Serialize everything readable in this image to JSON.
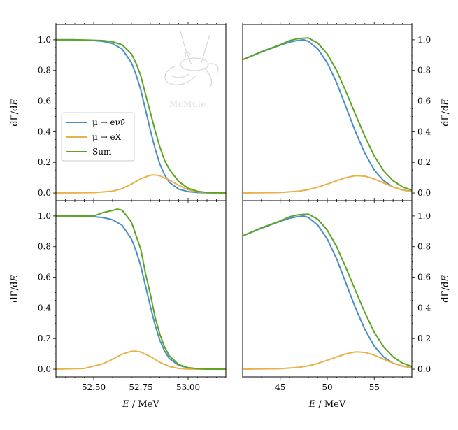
{
  "figure": {
    "watermark_text": "McMule",
    "colors": {
      "muon": "#4a8ec6",
      "alp": "#e8b24a",
      "sum": "#5ea424",
      "axis": "#000000"
    }
  },
  "chart_data": [
    {
      "type": "line",
      "panel": "top-left",
      "xlim": [
        52.3,
        53.2
      ],
      "ylim": [
        -0.05,
        1.1
      ],
      "x_ticks": [
        52.5,
        52.75,
        53.0
      ],
      "x_tick_labels": [],
      "y_ticks": [
        0.0,
        0.2,
        0.4,
        0.6,
        0.8,
        1.0
      ],
      "y_tick_labels": [
        "0.0",
        "0.2",
        "0.4",
        "0.6",
        "0.8",
        "1.0"
      ],
      "y_axis_side": "left",
      "xlabel": "",
      "ylabel": "dΓ/dE",
      "legend": {
        "position": "left-center",
        "entries": [
          "μ → eνν̄",
          "μ → eX",
          "Sum"
        ]
      },
      "series": [
        {
          "name": "μ → eνν̄",
          "color": "#4a8ec6",
          "x": [
            52.3,
            52.4,
            52.5,
            52.55,
            52.6,
            52.65,
            52.7,
            52.725,
            52.75,
            52.775,
            52.8,
            52.825,
            52.85,
            52.875,
            52.9,
            52.95,
            53.0,
            53.05,
            53.1,
            53.2
          ],
          "y": [
            1.0,
            1.0,
            0.995,
            0.99,
            0.975,
            0.94,
            0.85,
            0.77,
            0.67,
            0.54,
            0.41,
            0.29,
            0.19,
            0.12,
            0.07,
            0.025,
            0.009,
            0.003,
            0.001,
            0.0
          ]
        },
        {
          "name": "μ → eX",
          "color": "#e8b24a",
          "x": [
            52.3,
            52.5,
            52.6,
            52.65,
            52.7,
            52.75,
            52.8,
            52.825,
            52.85,
            52.9,
            52.95,
            53.0,
            53.05,
            53.1,
            53.2
          ],
          "y": [
            0.0,
            0.002,
            0.012,
            0.028,
            0.058,
            0.093,
            0.116,
            0.118,
            0.112,
            0.085,
            0.05,
            0.022,
            0.008,
            0.002,
            0.0
          ]
        },
        {
          "name": "Sum",
          "color": "#5ea424",
          "x": [
            52.3,
            52.4,
            52.5,
            52.55,
            52.6,
            52.65,
            52.7,
            52.725,
            52.75,
            52.775,
            52.8,
            52.825,
            52.85,
            52.875,
            52.9,
            52.95,
            53.0,
            53.05,
            53.1,
            53.2
          ],
          "y": [
            1.0,
            1.0,
            0.997,
            0.995,
            0.987,
            0.968,
            0.908,
            0.845,
            0.763,
            0.641,
            0.526,
            0.408,
            0.302,
            0.215,
            0.155,
            0.075,
            0.031,
            0.011,
            0.003,
            0.0
          ]
        }
      ]
    },
    {
      "type": "line",
      "panel": "top-right",
      "xlim": [
        41,
        59
      ],
      "ylim": [
        -0.05,
        1.1
      ],
      "x_ticks": [
        45,
        50,
        55
      ],
      "x_tick_labels": [],
      "y_ticks": [
        0.0,
        0.2,
        0.4,
        0.6,
        0.8,
        1.0
      ],
      "y_tick_labels": [
        "0.0",
        "0.2",
        "0.4",
        "0.6",
        "0.8",
        "1.0"
      ],
      "y_axis_side": "right",
      "xlabel": "",
      "ylabel": "dΓ/dE",
      "series": [
        {
          "name": "μ → eνν̄",
          "color": "#4a8ec6",
          "x": [
            41,
            43,
            45,
            46,
            47,
            47.5,
            48,
            49,
            50,
            51,
            52,
            53,
            54,
            55,
            56,
            57,
            58,
            59
          ],
          "y": [
            0.87,
            0.92,
            0.965,
            0.985,
            0.997,
            1.0,
            0.99,
            0.94,
            0.85,
            0.72,
            0.56,
            0.4,
            0.26,
            0.15,
            0.08,
            0.04,
            0.02,
            0.01
          ]
        },
        {
          "name": "μ → eX",
          "color": "#e8b24a",
          "x": [
            41,
            45,
            47,
            48,
            49,
            50,
            51,
            52,
            53,
            54,
            55,
            56,
            57,
            58,
            59
          ],
          "y": [
            0.0,
            0.003,
            0.012,
            0.022,
            0.038,
            0.058,
            0.08,
            0.1,
            0.113,
            0.11,
            0.092,
            0.065,
            0.04,
            0.02,
            0.008
          ]
        },
        {
          "name": "Sum",
          "color": "#5ea424",
          "x": [
            41,
            43,
            45,
            46,
            47,
            48,
            49,
            50,
            51,
            52,
            53,
            54,
            55,
            56,
            57,
            58,
            59
          ],
          "y": [
            0.87,
            0.923,
            0.968,
            0.995,
            1.009,
            1.012,
            0.978,
            0.908,
            0.8,
            0.66,
            0.513,
            0.37,
            0.242,
            0.145,
            0.08,
            0.04,
            0.018
          ]
        }
      ]
    },
    {
      "type": "line",
      "panel": "bottom-left",
      "xlim": [
        52.3,
        53.2
      ],
      "ylim": [
        -0.05,
        1.1
      ],
      "x_ticks": [
        52.5,
        52.75,
        53.0
      ],
      "x_tick_labels": [
        "52.50",
        "52.75",
        "53.00"
      ],
      "y_ticks": [
        0.0,
        0.2,
        0.4,
        0.6,
        0.8,
        1.0
      ],
      "y_tick_labels": [
        "0.0",
        "0.2",
        "0.4",
        "0.6",
        "0.8",
        "1.0"
      ],
      "y_axis_side": "left",
      "xlabel": "E / MeV",
      "ylabel": "dΓ/dE",
      "series": [
        {
          "name": "μ → eνν̄",
          "color": "#4a8ec6",
          "x": [
            52.3,
            52.4,
            52.5,
            52.55,
            52.6,
            52.65,
            52.7,
            52.725,
            52.75,
            52.775,
            52.8,
            52.825,
            52.85,
            52.875,
            52.9,
            52.95,
            53.0,
            53.05,
            53.1,
            53.2
          ],
          "y": [
            1.0,
            1.0,
            0.995,
            0.99,
            0.975,
            0.94,
            0.85,
            0.77,
            0.67,
            0.54,
            0.41,
            0.29,
            0.19,
            0.12,
            0.07,
            0.025,
            0.009,
            0.003,
            0.001,
            0.0
          ]
        },
        {
          "name": "μ → eX",
          "color": "#e8b24a",
          "x": [
            52.3,
            52.45,
            52.55,
            52.6,
            52.65,
            52.7,
            52.72,
            52.75,
            52.8,
            52.85,
            52.9,
            52.95,
            53.0,
            53.2
          ],
          "y": [
            0.0,
            0.005,
            0.035,
            0.065,
            0.098,
            0.117,
            0.118,
            0.112,
            0.082,
            0.045,
            0.018,
            0.005,
            0.001,
            0.0
          ]
        },
        {
          "name": "Sum",
          "color": "#5ea424",
          "x": [
            52.3,
            52.4,
            52.5,
            52.55,
            52.6,
            52.625,
            52.65,
            52.675,
            52.7,
            52.725,
            52.75,
            52.775,
            52.8,
            52.825,
            52.85,
            52.875,
            52.9,
            52.95,
            53.0,
            53.05,
            53.1,
            53.2
          ],
          "y": [
            1.0,
            1.0,
            1.0,
            1.022,
            1.036,
            1.045,
            1.038,
            1.0,
            0.96,
            0.87,
            0.78,
            0.62,
            0.49,
            0.34,
            0.23,
            0.145,
            0.088,
            0.03,
            0.01,
            0.003,
            0.001,
            0.0
          ]
        }
      ]
    },
    {
      "type": "line",
      "panel": "bottom-right",
      "xlim": [
        41,
        59
      ],
      "ylim": [
        -0.05,
        1.1
      ],
      "x_ticks": [
        45,
        50,
        55
      ],
      "x_tick_labels": [
        "45",
        "50",
        "55"
      ],
      "y_ticks": [
        0.0,
        0.2,
        0.4,
        0.6,
        0.8,
        1.0
      ],
      "y_tick_labels": [
        "0.0",
        "0.2",
        "0.4",
        "0.6",
        "0.8",
        "1.0"
      ],
      "y_axis_side": "right",
      "xlabel": "E / MeV",
      "ylabel": "dΓ/dE",
      "series": [
        {
          "name": "μ → eνν̄",
          "color": "#4a8ec6",
          "x": [
            41,
            43,
            45,
            46,
            47,
            47.5,
            48,
            49,
            50,
            51,
            52,
            53,
            54,
            55,
            56,
            57,
            58,
            59
          ],
          "y": [
            0.87,
            0.92,
            0.965,
            0.985,
            0.997,
            1.0,
            0.99,
            0.94,
            0.85,
            0.72,
            0.56,
            0.4,
            0.26,
            0.15,
            0.08,
            0.04,
            0.02,
            0.01
          ]
        },
        {
          "name": "μ → eX",
          "color": "#e8b24a",
          "x": [
            41,
            45,
            47,
            48,
            49,
            50,
            51,
            52,
            53,
            54,
            55,
            56,
            57,
            58,
            59
          ],
          "y": [
            0.0,
            0.003,
            0.012,
            0.022,
            0.038,
            0.058,
            0.08,
            0.1,
            0.113,
            0.11,
            0.092,
            0.065,
            0.04,
            0.02,
            0.008
          ]
        },
        {
          "name": "Sum",
          "color": "#5ea424",
          "x": [
            41,
            43,
            45,
            46,
            47,
            48,
            49,
            50,
            51,
            52,
            53,
            54,
            55,
            56,
            57,
            58,
            59
          ],
          "y": [
            0.87,
            0.923,
            0.968,
            0.995,
            1.009,
            1.012,
            0.978,
            0.908,
            0.8,
            0.66,
            0.513,
            0.37,
            0.242,
            0.145,
            0.08,
            0.04,
            0.018
          ]
        }
      ]
    }
  ]
}
